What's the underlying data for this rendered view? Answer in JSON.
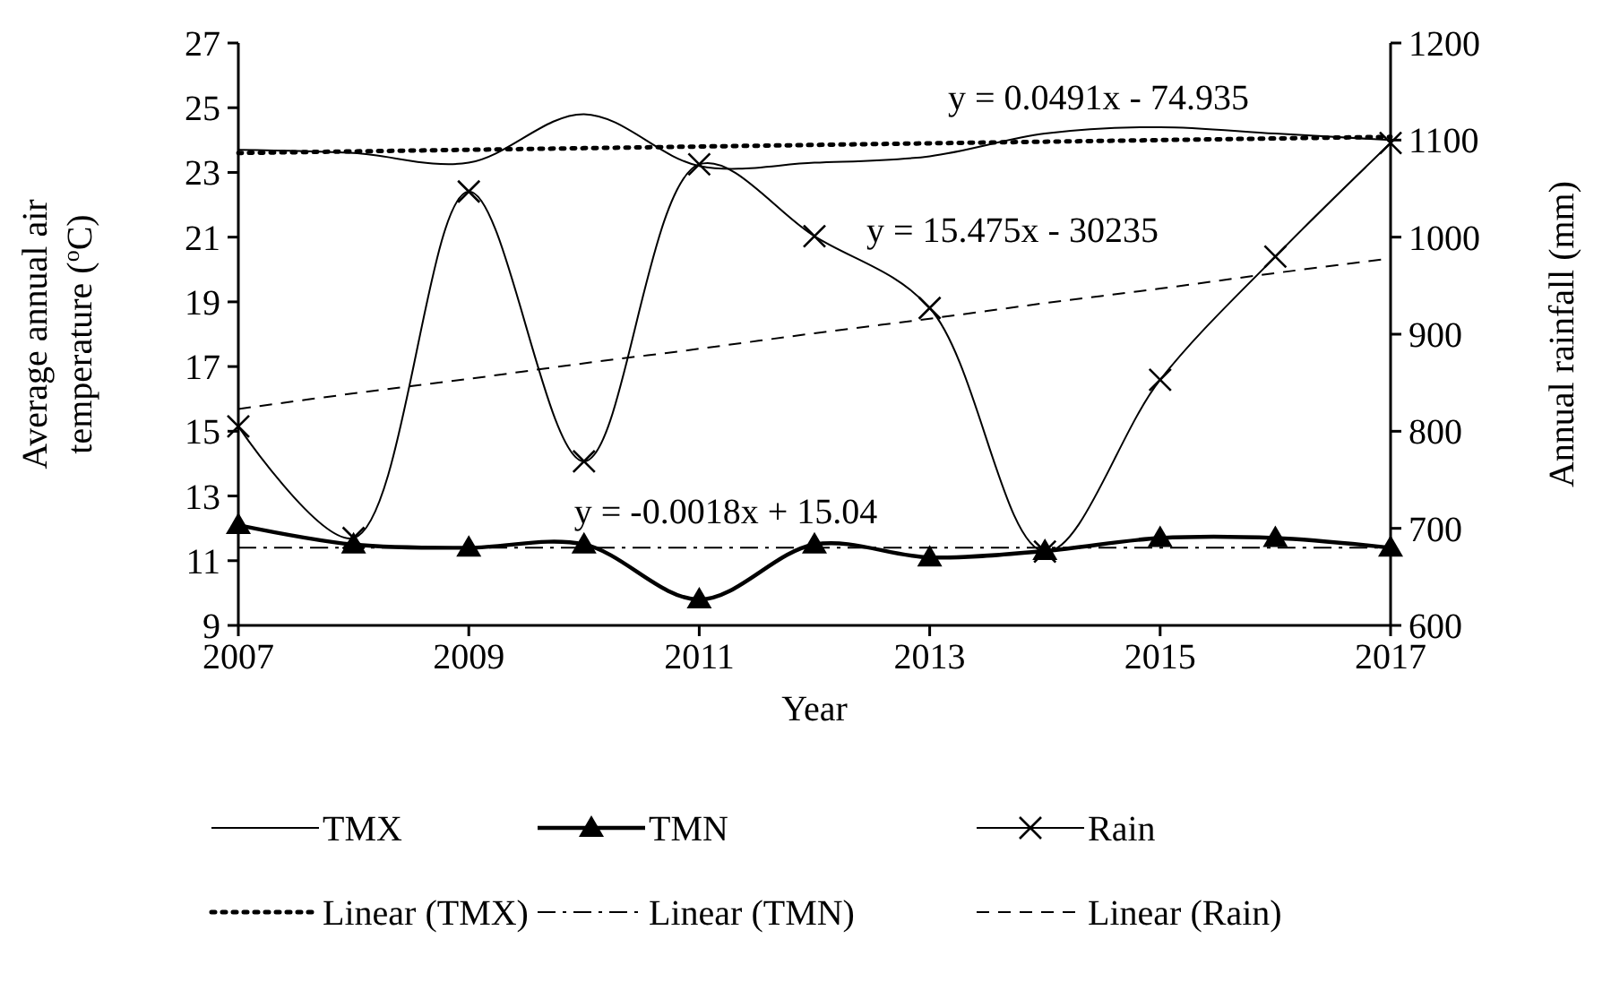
{
  "chart_data": {
    "type": "line",
    "xlabel": "Year",
    "ylabel": "Average annual air temperature ($^{o}$C)",
    "y2label": "Annual rainfall (mm)",
    "x": [
      2007,
      2008,
      2009,
      2010,
      2011,
      2012,
      2013,
      2014,
      2015,
      2016,
      2017
    ],
    "xlim": [
      2007,
      2017
    ],
    "xticks": [
      2007,
      2009,
      2011,
      2013,
      2015,
      2017
    ],
    "ylim": [
      9,
      27
    ],
    "yticks": [
      9,
      11,
      13,
      15,
      17,
      19,
      21,
      23,
      25,
      27
    ],
    "y2lim": [
      600,
      1200
    ],
    "y2ticks": [
      600,
      700,
      800,
      900,
      1000,
      1100,
      1200
    ],
    "series": [
      {
        "name": "TMX",
        "color": "#000000",
        "marker": "none",
        "line_style": "solid",
        "values": [
          23.7,
          23.6,
          23.3,
          24.8,
          23.2,
          23.3,
          23.5,
          24.2,
          24.4,
          24.2,
          24.0
        ]
      },
      {
        "name": "TMN",
        "color": "#000000",
        "marker": "triangle",
        "line_style": "solid",
        "values": [
          12.1,
          11.5,
          11.4,
          11.5,
          9.8,
          11.5,
          11.1,
          11.3,
          11.7,
          11.7,
          11.4
        ]
      },
      {
        "name": "Rain",
        "color": "#000000",
        "marker": "cross",
        "line_style": "solid",
        "axis": "y2",
        "values": [
          805,
          690,
          1047,
          769,
          1075,
          1001,
          927,
          676,
          853,
          980,
          1097
        ]
      },
      {
        "name": "Linear (TMX)",
        "color": "#000000",
        "marker": "none",
        "line_style": "dotted",
        "values": [
          23.6,
          23.65,
          23.7,
          23.75,
          23.8,
          23.85,
          23.9,
          23.95,
          24.0,
          24.05,
          24.1
        ]
      },
      {
        "name": "Linear (TMN)",
        "color": "#000000",
        "marker": "none",
        "line_style": "dashdot",
        "values": [
          11.4,
          11.4,
          11.4,
          11.4,
          11.4,
          11.4,
          11.4,
          11.4,
          11.4,
          11.4,
          11.4
        ]
      },
      {
        "name": "Linear (Rain)",
        "color": "#000000",
        "marker": "none",
        "line_style": "dashed",
        "axis": "y2",
        "values": [
          823,
          839,
          854,
          870,
          885,
          901,
          916,
          932,
          947,
          963,
          978
        ]
      }
    ],
    "annotations": [
      "y = 0.0491x - 74.935",
      "y = 15.475x - 30235",
      "y = -0.0018x + 15.04"
    ],
    "legend": "bottom",
    "grid": false
  }
}
